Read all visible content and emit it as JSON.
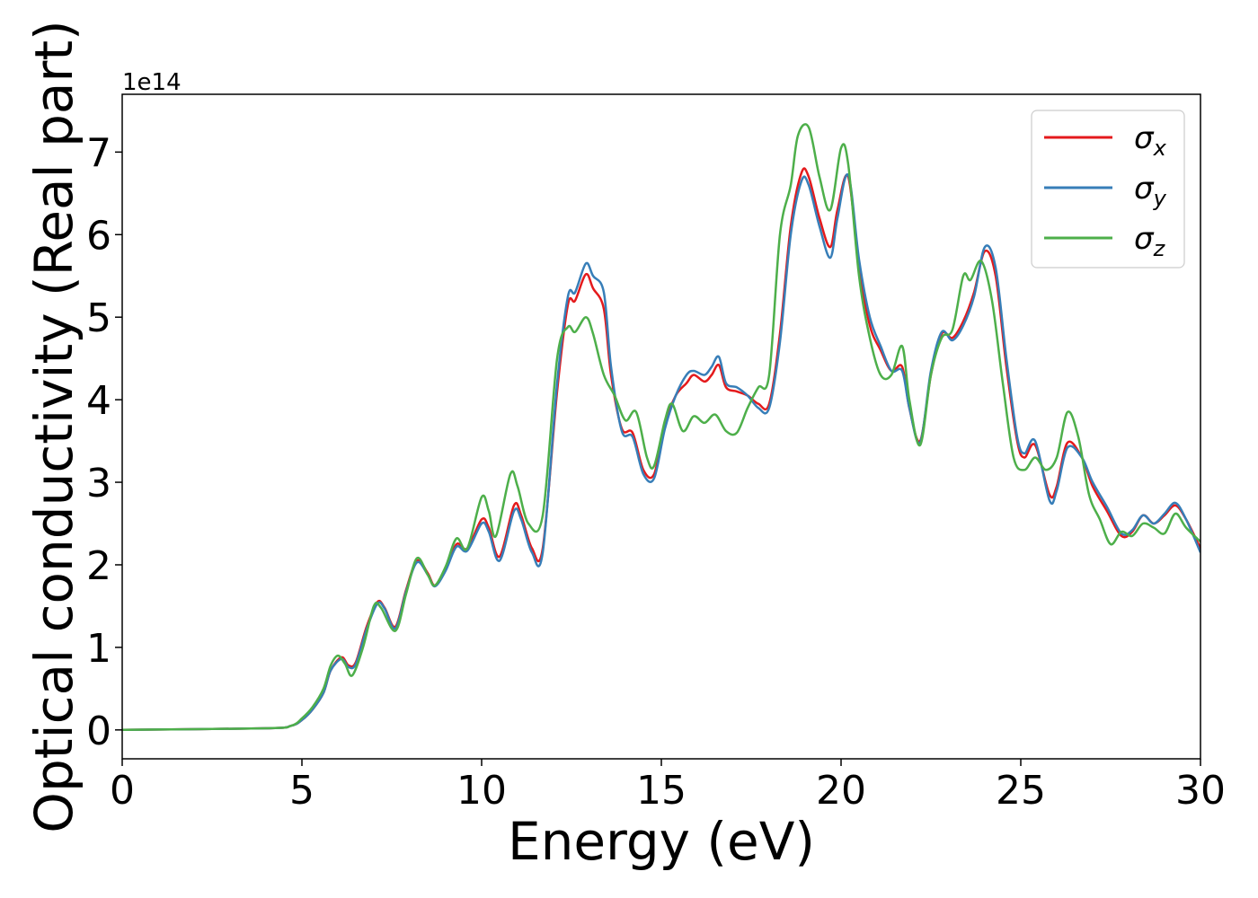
{
  "chart_data": {
    "type": "line",
    "title": "",
    "xlabel": "Energy (eV)",
    "ylabel": "Optical conductivity (Real part)",
    "y_offset_label": "1e14",
    "xlim": [
      0,
      30
    ],
    "ylim": [
      -0.35,
      7.7
    ],
    "xticks": [
      0,
      5,
      10,
      15,
      20,
      25,
      30
    ],
    "xtick_labels": [
      "0",
      "5",
      "10",
      "15",
      "20",
      "25",
      "30"
    ],
    "yticks": [
      0,
      1,
      2,
      3,
      4,
      5,
      6,
      7
    ],
    "ytick_labels": [
      "0",
      "1",
      "2",
      "3",
      "4",
      "5",
      "6",
      "7"
    ],
    "grid": false,
    "legend_position": "top-right",
    "series": [
      {
        "name": "σ",
        "subscript": "x",
        "color": "#e41a1c",
        "points": [
          [
            0,
            0
          ],
          [
            4,
            0.02
          ],
          [
            4.7,
            0.05
          ],
          [
            5,
            0.12
          ],
          [
            5.3,
            0.25
          ],
          [
            5.6,
            0.45
          ],
          [
            5.8,
            0.72
          ],
          [
            6.1,
            0.88
          ],
          [
            6.3,
            0.78
          ],
          [
            6.5,
            0.82
          ],
          [
            6.8,
            1.25
          ],
          [
            7.1,
            1.55
          ],
          [
            7.3,
            1.48
          ],
          [
            7.6,
            1.25
          ],
          [
            7.9,
            1.7
          ],
          [
            8.2,
            2.05
          ],
          [
            8.5,
            1.9
          ],
          [
            8.7,
            1.75
          ],
          [
            9,
            1.95
          ],
          [
            9.3,
            2.25
          ],
          [
            9.6,
            2.2
          ],
          [
            10,
            2.55
          ],
          [
            10.2,
            2.45
          ],
          [
            10.5,
            2.1
          ],
          [
            10.9,
            2.72
          ],
          [
            11.1,
            2.6
          ],
          [
            11.4,
            2.2
          ],
          [
            11.7,
            2.2
          ],
          [
            12.1,
            4.1
          ],
          [
            12.4,
            5.15
          ],
          [
            12.6,
            5.2
          ],
          [
            12.9,
            5.52
          ],
          [
            13.1,
            5.35
          ],
          [
            13.4,
            5.1
          ],
          [
            13.6,
            4.3
          ],
          [
            13.9,
            3.65
          ],
          [
            14.2,
            3.6
          ],
          [
            14.5,
            3.15
          ],
          [
            14.8,
            3.1
          ],
          [
            15.1,
            3.7
          ],
          [
            15.4,
            4.05
          ],
          [
            15.7,
            4.2
          ],
          [
            15.9,
            4.3
          ],
          [
            16.2,
            4.22
          ],
          [
            16.4,
            4.3
          ],
          [
            16.6,
            4.42
          ],
          [
            16.8,
            4.15
          ],
          [
            17.1,
            4.1
          ],
          [
            17.4,
            4.05
          ],
          [
            17.7,
            3.95
          ],
          [
            18.0,
            3.95
          ],
          [
            18.3,
            4.8
          ],
          [
            18.6,
            6.1
          ],
          [
            18.9,
            6.75
          ],
          [
            19.1,
            6.7
          ],
          [
            19.4,
            6.2
          ],
          [
            19.7,
            5.85
          ],
          [
            19.9,
            6.3
          ],
          [
            20.2,
            6.7
          ],
          [
            20.5,
            5.6
          ],
          [
            20.8,
            4.9
          ],
          [
            21.1,
            4.6
          ],
          [
            21.4,
            4.35
          ],
          [
            21.7,
            4.4
          ],
          [
            21.9,
            3.9
          ],
          [
            22.2,
            3.5
          ],
          [
            22.5,
            4.3
          ],
          [
            22.8,
            4.8
          ],
          [
            23.1,
            4.75
          ],
          [
            23.4,
            4.95
          ],
          [
            23.7,
            5.3
          ],
          [
            24.0,
            5.8
          ],
          [
            24.3,
            5.5
          ],
          [
            24.6,
            4.4
          ],
          [
            24.9,
            3.5
          ],
          [
            25.1,
            3.3
          ],
          [
            25.4,
            3.45
          ],
          [
            25.8,
            2.85
          ],
          [
            26.0,
            2.95
          ],
          [
            26.3,
            3.48
          ],
          [
            26.7,
            3.3
          ],
          [
            27.0,
            2.95
          ],
          [
            27.4,
            2.65
          ],
          [
            27.8,
            2.35
          ],
          [
            28.1,
            2.4
          ],
          [
            28.4,
            2.6
          ],
          [
            28.7,
            2.5
          ],
          [
            29.0,
            2.6
          ],
          [
            29.3,
            2.72
          ],
          [
            29.6,
            2.55
          ],
          [
            30,
            2.2
          ]
        ]
      },
      {
        "name": "σ",
        "subscript": "y",
        "color": "#377eb8",
        "points": [
          [
            0,
            0
          ],
          [
            4,
            0.02
          ],
          [
            4.7,
            0.05
          ],
          [
            5,
            0.12
          ],
          [
            5.3,
            0.25
          ],
          [
            5.6,
            0.45
          ],
          [
            5.8,
            0.72
          ],
          [
            6.1,
            0.86
          ],
          [
            6.3,
            0.76
          ],
          [
            6.5,
            0.8
          ],
          [
            6.8,
            1.22
          ],
          [
            7.1,
            1.53
          ],
          [
            7.3,
            1.47
          ],
          [
            7.6,
            1.23
          ],
          [
            7.9,
            1.68
          ],
          [
            8.2,
            2.03
          ],
          [
            8.5,
            1.88
          ],
          [
            8.7,
            1.74
          ],
          [
            9,
            1.93
          ],
          [
            9.3,
            2.22
          ],
          [
            9.6,
            2.17
          ],
          [
            10,
            2.5
          ],
          [
            10.2,
            2.4
          ],
          [
            10.5,
            2.05
          ],
          [
            10.9,
            2.65
          ],
          [
            11.1,
            2.55
          ],
          [
            11.4,
            2.15
          ],
          [
            11.7,
            2.15
          ],
          [
            12.1,
            4.2
          ],
          [
            12.4,
            5.25
          ],
          [
            12.6,
            5.3
          ],
          [
            12.9,
            5.65
          ],
          [
            13.1,
            5.5
          ],
          [
            13.4,
            5.3
          ],
          [
            13.6,
            4.4
          ],
          [
            13.9,
            3.62
          ],
          [
            14.2,
            3.55
          ],
          [
            14.5,
            3.1
          ],
          [
            14.8,
            3.05
          ],
          [
            15.1,
            3.65
          ],
          [
            15.4,
            4.05
          ],
          [
            15.7,
            4.3
          ],
          [
            15.9,
            4.35
          ],
          [
            16.2,
            4.3
          ],
          [
            16.4,
            4.4
          ],
          [
            16.6,
            4.52
          ],
          [
            16.8,
            4.2
          ],
          [
            17.1,
            4.15
          ],
          [
            17.4,
            4.05
          ],
          [
            17.7,
            3.9
          ],
          [
            18.0,
            3.9
          ],
          [
            18.3,
            4.7
          ],
          [
            18.6,
            6.0
          ],
          [
            18.9,
            6.65
          ],
          [
            19.1,
            6.6
          ],
          [
            19.4,
            6.1
          ],
          [
            19.7,
            5.72
          ],
          [
            19.9,
            6.2
          ],
          [
            20.2,
            6.72
          ],
          [
            20.5,
            5.7
          ],
          [
            20.8,
            5.0
          ],
          [
            21.1,
            4.65
          ],
          [
            21.4,
            4.35
          ],
          [
            21.7,
            4.35
          ],
          [
            21.9,
            3.9
          ],
          [
            22.2,
            3.48
          ],
          [
            22.5,
            4.35
          ],
          [
            22.8,
            4.82
          ],
          [
            23.1,
            4.72
          ],
          [
            23.4,
            4.9
          ],
          [
            23.7,
            5.25
          ],
          [
            24.0,
            5.85
          ],
          [
            24.3,
            5.6
          ],
          [
            24.6,
            4.5
          ],
          [
            24.9,
            3.55
          ],
          [
            25.1,
            3.35
          ],
          [
            25.4,
            3.5
          ],
          [
            25.8,
            2.78
          ],
          [
            26.0,
            2.9
          ],
          [
            26.3,
            3.42
          ],
          [
            26.7,
            3.3
          ],
          [
            27.0,
            3.0
          ],
          [
            27.4,
            2.7
          ],
          [
            27.8,
            2.38
          ],
          [
            28.1,
            2.42
          ],
          [
            28.4,
            2.6
          ],
          [
            28.7,
            2.5
          ],
          [
            29.0,
            2.62
          ],
          [
            29.3,
            2.75
          ],
          [
            29.6,
            2.55
          ],
          [
            30,
            2.15
          ]
        ]
      },
      {
        "name": "σ",
        "subscript": "z",
        "color": "#4daf4a",
        "points": [
          [
            0,
            0
          ],
          [
            4,
            0.02
          ],
          [
            4.7,
            0.05
          ],
          [
            5,
            0.14
          ],
          [
            5.3,
            0.28
          ],
          [
            5.6,
            0.5
          ],
          [
            5.8,
            0.78
          ],
          [
            6.0,
            0.9
          ],
          [
            6.2,
            0.8
          ],
          [
            6.4,
            0.66
          ],
          [
            6.7,
            1.0
          ],
          [
            7.0,
            1.5
          ],
          [
            7.2,
            1.48
          ],
          [
            7.6,
            1.2
          ],
          [
            7.9,
            1.65
          ],
          [
            8.2,
            2.08
          ],
          [
            8.5,
            1.88
          ],
          [
            8.7,
            1.75
          ],
          [
            9,
            1.98
          ],
          [
            9.3,
            2.32
          ],
          [
            9.6,
            2.2
          ],
          [
            10,
            2.82
          ],
          [
            10.2,
            2.65
          ],
          [
            10.4,
            2.35
          ],
          [
            10.8,
            3.1
          ],
          [
            11.0,
            2.95
          ],
          [
            11.3,
            2.5
          ],
          [
            11.7,
            2.6
          ],
          [
            12.1,
            4.5
          ],
          [
            12.4,
            4.88
          ],
          [
            12.6,
            4.82
          ],
          [
            12.9,
            5.0
          ],
          [
            13.1,
            4.8
          ],
          [
            13.4,
            4.3
          ],
          [
            13.7,
            4.05
          ],
          [
            14.0,
            3.75
          ],
          [
            14.3,
            3.85
          ],
          [
            14.6,
            3.3
          ],
          [
            14.8,
            3.2
          ],
          [
            15.1,
            3.75
          ],
          [
            15.3,
            3.95
          ],
          [
            15.6,
            3.62
          ],
          [
            15.9,
            3.8
          ],
          [
            16.2,
            3.72
          ],
          [
            16.5,
            3.82
          ],
          [
            16.8,
            3.62
          ],
          [
            17.1,
            3.6
          ],
          [
            17.4,
            3.9
          ],
          [
            17.7,
            4.15
          ],
          [
            18.0,
            4.3
          ],
          [
            18.3,
            6.0
          ],
          [
            18.6,
            6.6
          ],
          [
            18.8,
            7.2
          ],
          [
            19.1,
            7.3
          ],
          [
            19.4,
            6.7
          ],
          [
            19.7,
            6.3
          ],
          [
            20.0,
            7.05
          ],
          [
            20.2,
            6.85
          ],
          [
            20.5,
            5.5
          ],
          [
            20.8,
            4.75
          ],
          [
            21.1,
            4.3
          ],
          [
            21.4,
            4.3
          ],
          [
            21.7,
            4.65
          ],
          [
            21.9,
            4.0
          ],
          [
            22.2,
            3.45
          ],
          [
            22.5,
            4.3
          ],
          [
            22.8,
            4.75
          ],
          [
            23.1,
            4.85
          ],
          [
            23.4,
            5.5
          ],
          [
            23.6,
            5.45
          ],
          [
            23.9,
            5.68
          ],
          [
            24.2,
            5.2
          ],
          [
            24.5,
            4.2
          ],
          [
            24.8,
            3.3
          ],
          [
            25.1,
            3.15
          ],
          [
            25.4,
            3.3
          ],
          [
            25.7,
            3.15
          ],
          [
            26.0,
            3.3
          ],
          [
            26.3,
            3.85
          ],
          [
            26.6,
            3.55
          ],
          [
            26.9,
            2.85
          ],
          [
            27.2,
            2.55
          ],
          [
            27.5,
            2.25
          ],
          [
            27.8,
            2.4
          ],
          [
            28.1,
            2.35
          ],
          [
            28.4,
            2.5
          ],
          [
            28.7,
            2.45
          ],
          [
            29.0,
            2.38
          ],
          [
            29.3,
            2.62
          ],
          [
            29.6,
            2.45
          ],
          [
            30,
            2.28
          ]
        ]
      }
    ]
  }
}
